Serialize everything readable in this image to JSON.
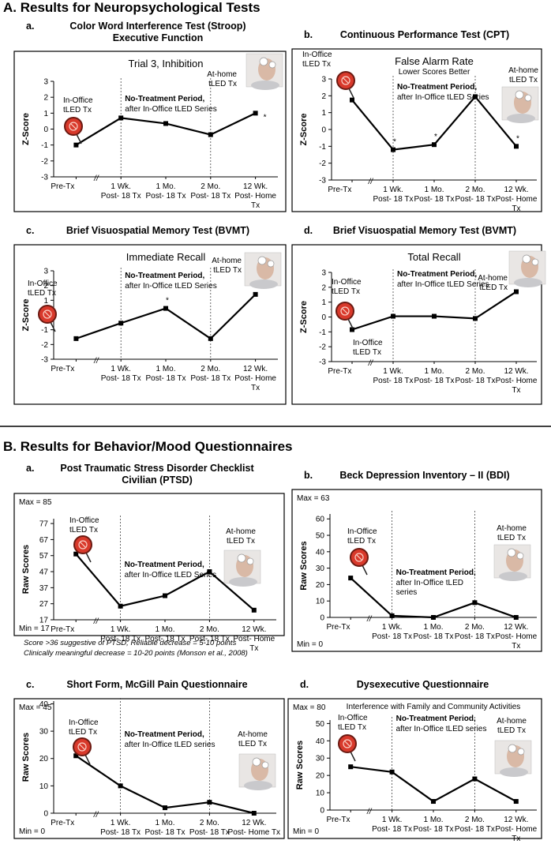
{
  "sections": [
    "A. Results for Neuropsychological Tests",
    "B. Results for Behavior/Mood Questionnaires"
  ],
  "chart_data": [
    {
      "type": "line",
      "panel": "a.",
      "title": "Color Word Interference Test (Stroop)\nExecutive Function",
      "subtitle": "Trial 3, Inhibition",
      "ylabel": "Z-Score",
      "categories": [
        "Pre-Tx",
        "1 Wk.\nPost- 18 Tx",
        "1 Mo.\nPost- 18 Tx",
        "2 Mo.\nPost- 18 Tx",
        "12 Wk.\nPost- Home\nTx"
      ],
      "values": [
        -1.0,
        0.7,
        0.35,
        -0.35,
        1.0
      ],
      "color": "#000000",
      "ylim": [
        -3,
        3
      ],
      "yticks": [
        -3,
        -2,
        -1,
        0,
        1,
        2,
        3
      ],
      "star": "*",
      "stars": [
        4
      ],
      "break_mark": "//",
      "in_office": "In-Office\ntLED Tx",
      "at_home": "At-home\ntLED Tx",
      "period": "No-Treatment Period,",
      "period_note": "after In-Office tLED Series"
    },
    {
      "type": "line",
      "panel": "b.",
      "title": "Continuous Performance Test (CPT)",
      "subtitle": "False Alarm Rate",
      "subtitle_2": "Lower Scores Better",
      "ylabel": "Z-Score",
      "categories": [
        "Pre-Tx",
        "1 Wk.\nPost- 18 Tx",
        "1 Mo.\nPost- 18 Tx",
        "2 Mo.\nPost- 18 Tx",
        "12 Wk.\nPost- Home\nTx"
      ],
      "values": [
        1.75,
        -1.2,
        -0.9,
        1.95,
        -1.0
      ],
      "color": "#000000",
      "ylim": [
        -3,
        3
      ],
      "yticks": [
        -3,
        -2,
        -1,
        0,
        1,
        2,
        3
      ],
      "star": "*",
      "stars": [
        1,
        2,
        4
      ],
      "break_mark": "//",
      "in_office": "In-Office\ntLED Tx",
      "at_home": "At-home\ntLED Tx",
      "period": "No-Treatment Period,",
      "period_note": "after In-Office tLED Series"
    },
    {
      "type": "line",
      "panel": "c.",
      "title": "Brief Visuospatial Memory Test (BVMT)",
      "subtitle": "Immediate Recall",
      "ylabel": "Z-Score",
      "categories": [
        "Pre-Tx",
        "1 Wk.\nPost- 18 Tx",
        "1 Mo.\nPost- 18 Tx",
        "2 Mo.\nPost- 18 Tx",
        "12 Wk.\nPost- Home\nTx"
      ],
      "values": [
        -1.6,
        -0.55,
        0.45,
        -1.6,
        1.4
      ],
      "color": "#000000",
      "ylim": [
        -3,
        3
      ],
      "yticks": [
        -3,
        -2,
        -1,
        0,
        1,
        2,
        3
      ],
      "star": "*",
      "stars": [
        2,
        4
      ],
      "break_mark": "//",
      "in_office": "In-Office\ntLED Tx",
      "at_home": "At-home\ntLED Tx",
      "period": "No-Treatment Period,",
      "period_note": "after In-Office tLED Series"
    },
    {
      "type": "line",
      "panel": "d.",
      "title": "Brief Visuospatial Memory Test (BVMT)",
      "subtitle": "Total Recall",
      "ylabel": "Z-Score",
      "categories": [
        "Pre-Tx",
        "1 Wk.\nPost- 18 Tx",
        "1 Mo.\nPost- 18 Tx",
        "2 Mo.\nPost- 18 Tx",
        "12 Wk.\nPost- Home\nTx"
      ],
      "values": [
        -0.85,
        0.05,
        0.05,
        -0.1,
        1.7
      ],
      "color": "#000000",
      "ylim": [
        -3,
        3
      ],
      "yticks": [
        -3,
        -2,
        -1,
        0,
        1,
        2,
        3
      ],
      "star": "*",
      "stars": [
        4
      ],
      "break_mark": "//",
      "in_office": "In-Office\ntLED Tx",
      "in_office_2": "In-Office\ntLED Tx",
      "at_home": "At-home\ntLED Tx",
      "period": "No-Treatment Period,",
      "period_note": "after In-Office tLED Series"
    },
    {
      "type": "line",
      "panel": "a.",
      "title": "Post Traumatic Stress Disorder Checklist\nCivilian (PTSD)",
      "ylabel": "Raw Scores",
      "categories": [
        "Pre-Tx",
        "1 Wk.\nPost- 18 Tx",
        "1 Mo.\nPost- 18 Tx",
        "2 Mo.\nPost- 18 Tx",
        "12 Wk.\nPost- Home\nTx"
      ],
      "values": [
        58,
        25.5,
        32,
        47,
        23
      ],
      "color": "#000000",
      "ylim": [
        17,
        80
      ],
      "yticks": [
        17,
        27,
        37,
        47,
        57,
        67,
        77
      ],
      "break_mark": "//",
      "max_label": "Max = 85",
      "min_label": "Min = 17",
      "in_office": "In-Office\ntLED Tx",
      "at_home": "At-home\ntLED Tx",
      "period": "No-Treatment Period,",
      "period_note": "after In-Office tLED Series",
      "notes": [
        "Score >36 suggestive of PTSD; Reliable decrease = 5-10 points",
        "Clinically meaningful decrease = 10-20 points   (Monson et al., 2008)"
      ]
    },
    {
      "type": "line",
      "panel": "b.",
      "title": "Beck Depression Inventory – II (BDI)",
      "ylabel": "Raw Scores",
      "categories": [
        "Pre-Tx",
        "1 Wk.\nPost- 18 Tx",
        "1 Mo.\nPost- 18 Tx",
        "2 Mo.\nPost- 18 Tx",
        "12 Wk.\nPost- Home\nTx"
      ],
      "values": [
        24,
        1,
        0,
        9,
        0
      ],
      "color": "#000000",
      "ylim": [
        0,
        63
      ],
      "yticks": [
        0,
        10,
        20,
        30,
        40,
        50,
        60
      ],
      "break_mark": "//",
      "max_label": "Max = 63",
      "min_label": "Min = 0",
      "in_office": "In-Office\ntLED Tx",
      "at_home": "At-home\ntLED Tx",
      "period": "No-Treatment Period,",
      "period_note": "after In-Office tLED\nseries"
    },
    {
      "type": "line",
      "panel": "c.",
      "title": "Short Form, McGill Pain Questionnaire",
      "ylabel": "Raw Scores",
      "categories": [
        "Pre-Tx",
        "1 Wk.\nPost- 18 Tx",
        "1 Mo.\nPost- 18 Tx",
        "2 Mo.\nPost- 18 Tx",
        "12 Wk.\nPost- Home Tx"
      ],
      "values": [
        21,
        10,
        2,
        4,
        0
      ],
      "color": "#000000",
      "ylim": [
        0,
        41
      ],
      "yticks": [
        0,
        10,
        20,
        30,
        40
      ],
      "break_mark": "//",
      "max_label": "Max = 45",
      "min_label": "Min = 0",
      "in_office": "In-Office\ntLED Tx",
      "at_home": "At-home\ntLED Tx",
      "period": "No-Treatment Period,",
      "period_note": "after In-Office tLED series"
    },
    {
      "type": "line",
      "panel": "d.",
      "title": "Dysexecutive Questionnaire",
      "subtitle": "Interference with Family and Community Activities",
      "ylabel": "Raw Scores",
      "categories": [
        "Pre-Tx",
        "1 Wk.\nPost- 18 Tx",
        "1 Mo.\nPost- 18 Tx",
        "2 Mo.\nPost- 18 Tx",
        "12 Wk.\nPost- Home\nTx"
      ],
      "values": [
        25,
        22,
        5,
        18,
        5
      ],
      "color": "#000000",
      "ylim": [
        0,
        52
      ],
      "yticks": [
        0,
        10,
        20,
        30,
        40,
        50
      ],
      "break_mark": "//",
      "max_label": "Max = 80",
      "min_label": "Min = 0",
      "in_office": "In-Office\ntLED Tx",
      "at_home": "At-home\ntLED Tx",
      "period": "No-Treatment Period,",
      "period_note": "after In-Office tLED series"
    }
  ]
}
